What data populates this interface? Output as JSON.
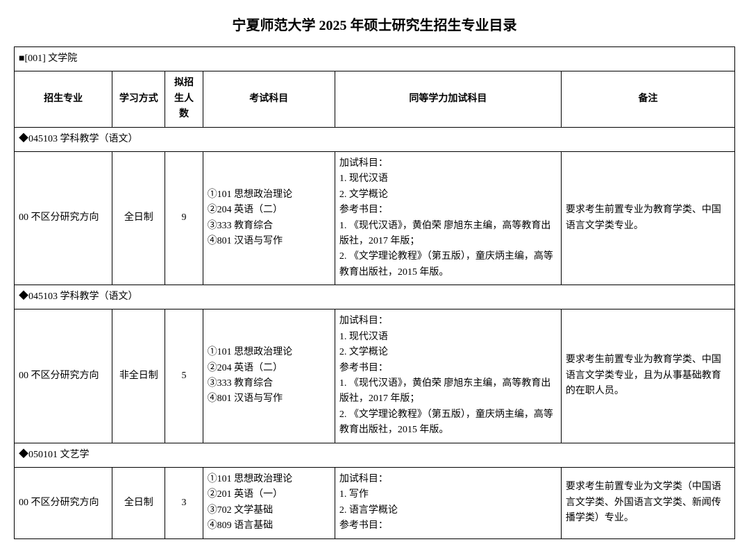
{
  "title": "宁夏师范大学 2025 年硕士研究生招生专业目录",
  "department_header": "■[001] 文学院",
  "columns": {
    "major": "招生专业",
    "mode": "学习方式",
    "quota": "拟招生人数",
    "exam": "考试科目",
    "equiv": "同等学力加试科目",
    "remark": "备注"
  },
  "sections": [
    {
      "header": "◆045103 学科教学（语文）",
      "rows": [
        {
          "major": "00 不区分研究方向",
          "mode": "全日制",
          "quota": "9",
          "exam": "①101 思想政治理论\n②204 英语（二）\n③333 教育综合\n④801 汉语与写作",
          "equiv": "加试科目：\n1. 现代汉语\n2. 文学概论\n参考书目：\n1. 《现代汉语》，黄伯荣  廖旭东主编，高等教育出版社，2017 年版；\n2. 《文学理论教程》（第五版），童庆炳主编，高等教育出版社，2015 年版。",
          "remark": "要求考生前置专业为教育学类、中国语言文学类专业。"
        }
      ]
    },
    {
      "header": "◆045103 学科教学（语文）",
      "rows": [
        {
          "major": "00 不区分研究方向",
          "mode": "非全日制",
          "quota": "5",
          "exam": "①101 思想政治理论\n②204 英语（二）\n③333 教育综合\n④801 汉语与写作",
          "equiv": "加试科目：\n1. 现代汉语\n2. 文学概论\n参考书目：\n1. 《现代汉语》，黄伯荣  廖旭东主编，高等教育出版社，2017 年版；\n2. 《文学理论教程》（第五版），童庆炳主编，高等教育出版社，2015 年版。",
          "remark": "要求考生前置专业为教育学类、中国语言文学类专业，且为从事基础教育的在职人员。"
        }
      ]
    },
    {
      "header": "◆050101 文艺学",
      "rows": [
        {
          "major": "00 不区分研究方向",
          "mode": "全日制",
          "quota": "3",
          "exam": "①101 思想政治理论\n②201 英语（一）\n③702 文学基础\n④809 语言基础",
          "equiv": "加试科目：\n1. 写作\n2. 语言学概论\n参考书目：",
          "remark": "要求考生前置专业为文学类（中国语言文学类、外国语言文学类、新闻传播学类）专业。"
        }
      ]
    }
  ]
}
